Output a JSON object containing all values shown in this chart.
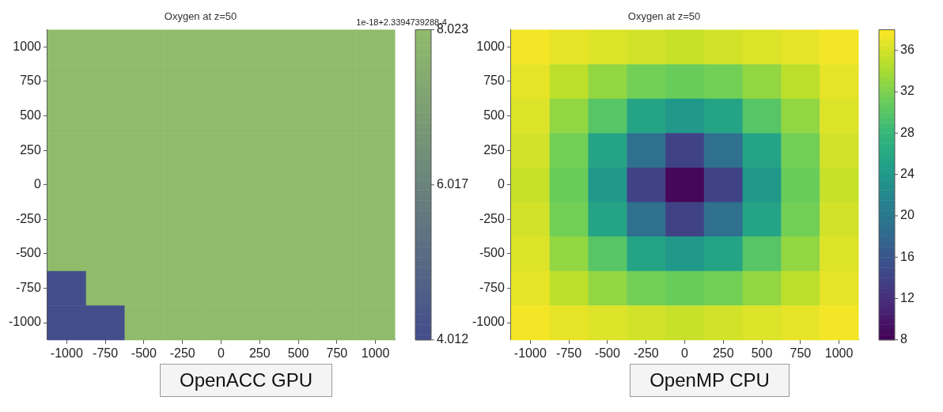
{
  "chart_data": [
    {
      "type": "heatmap",
      "title": "Oxygen at z=50",
      "annotations": [
        "1e-18+2.3394739288-4",
        "OpenACC GPU"
      ],
      "categories": [
        "-1000",
        "-750",
        "-500",
        "-250",
        "0",
        "250",
        "500",
        "750",
        "1000"
      ],
      "y_categories": [
        "1000",
        "750",
        "500",
        "250",
        "0",
        "-250",
        "-500",
        "-750",
        "-1000"
      ],
      "colors": [
        "#434d8c",
        "#90bb6b"
      ],
      "clim": [
        4.012,
        8.023
      ],
      "cticks": [
        4.012,
        6.017,
        8.023
      ],
      "cells": [
        [
          8.023,
          8.023,
          8.023,
          8.023,
          8.023,
          8.023,
          8.023,
          8.023,
          8.023
        ],
        [
          8.023,
          8.023,
          8.023,
          8.023,
          8.023,
          8.023,
          8.023,
          8.023,
          8.023
        ],
        [
          8.023,
          8.023,
          8.023,
          8.023,
          8.023,
          8.023,
          8.023,
          8.023,
          8.023
        ],
        [
          8.023,
          8.023,
          8.023,
          8.023,
          8.023,
          8.023,
          8.023,
          8.023,
          8.023
        ],
        [
          8.023,
          8.023,
          8.023,
          8.023,
          8.023,
          8.023,
          8.023,
          8.023,
          8.023
        ],
        [
          8.023,
          8.023,
          8.023,
          8.023,
          8.023,
          8.023,
          8.023,
          8.023,
          8.023
        ],
        [
          8.023,
          8.023,
          8.023,
          8.023,
          8.023,
          8.023,
          8.023,
          8.023,
          8.023
        ],
        [
          4.012,
          8.023,
          8.023,
          8.023,
          8.023,
          8.023,
          8.023,
          8.023,
          8.023
        ],
        [
          4.012,
          4.012,
          8.023,
          8.023,
          8.023,
          8.023,
          8.023,
          8.023,
          8.023
        ]
      ]
    },
    {
      "type": "heatmap",
      "title": "Oxygen at z=50",
      "annotations": [
        "OpenMP CPU"
      ],
      "categories": [
        "-1000",
        "-750",
        "-500",
        "-250",
        "0",
        "250",
        "500",
        "750",
        "1000"
      ],
      "y_categories": [
        "1000",
        "750",
        "500",
        "250",
        "0",
        "-250",
        "-500",
        "-750",
        "-1000"
      ],
      "colors": [
        "#440154",
        "#482878",
        "#3e4989",
        "#31688e",
        "#26828e",
        "#1f9e89",
        "#35b779",
        "#6ece58",
        "#b5de2b",
        "#fde725"
      ],
      "clim": [
        8,
        38
      ],
      "cticks": [
        8,
        12,
        16,
        20,
        24,
        28,
        32,
        36
      ],
      "cells": [
        [
          37.5,
          37,
          36.5,
          36,
          35.5,
          36,
          36.5,
          37,
          37.5
        ],
        [
          37,
          35,
          33,
          31.5,
          31,
          31.5,
          33,
          35,
          37
        ],
        [
          36.5,
          33,
          30,
          25.5,
          24,
          25.5,
          30,
          33,
          36.5
        ],
        [
          36,
          31.5,
          25.5,
          19,
          14,
          19,
          25.5,
          31.5,
          36
        ],
        [
          35.5,
          31,
          24,
          14,
          8.5,
          14,
          24,
          31,
          35.5
        ],
        [
          36,
          31.5,
          25.5,
          19,
          14,
          19,
          25.5,
          31.5,
          36
        ],
        [
          36.5,
          33,
          30,
          25.5,
          24,
          25.5,
          30,
          33,
          36.5
        ],
        [
          37,
          35,
          33,
          31.5,
          31,
          31.5,
          33,
          35,
          37
        ],
        [
          37.5,
          37,
          36.5,
          36,
          35.5,
          36,
          36.5,
          37,
          37.5
        ]
      ]
    }
  ]
}
